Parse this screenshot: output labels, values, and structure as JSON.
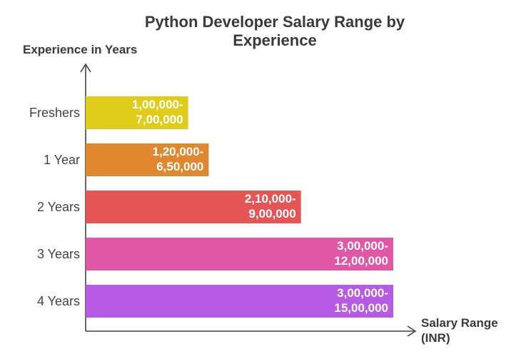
{
  "chart_data": {
    "type": "bar",
    "orientation": "horizontal",
    "title": "Python Developer Salary Range by Experience",
    "ylabel": "Experience in Years",
    "xlabel": "Salary Range (INR)",
    "grid": false,
    "categories": [
      "Freshers",
      "1 Year",
      "2 Years",
      "3 Years",
      "4 Years"
    ],
    "series": [
      {
        "values": [
          1,
          1.2,
          2.1,
          3,
          3
        ],
        "labels": [
          "1,00,000-7,00,000",
          "1,20,000-6,50,000",
          "2,10,000-9,00,000",
          "3,00,000-12,00,000",
          "3,00,000-15,00,000"
        ],
        "colors": [
          "#e0cc1a",
          "#e08830",
          "#e45555",
          "#df57a5",
          "#b65ae4"
        ]
      }
    ],
    "xlim": [
      0,
      3
    ]
  }
}
